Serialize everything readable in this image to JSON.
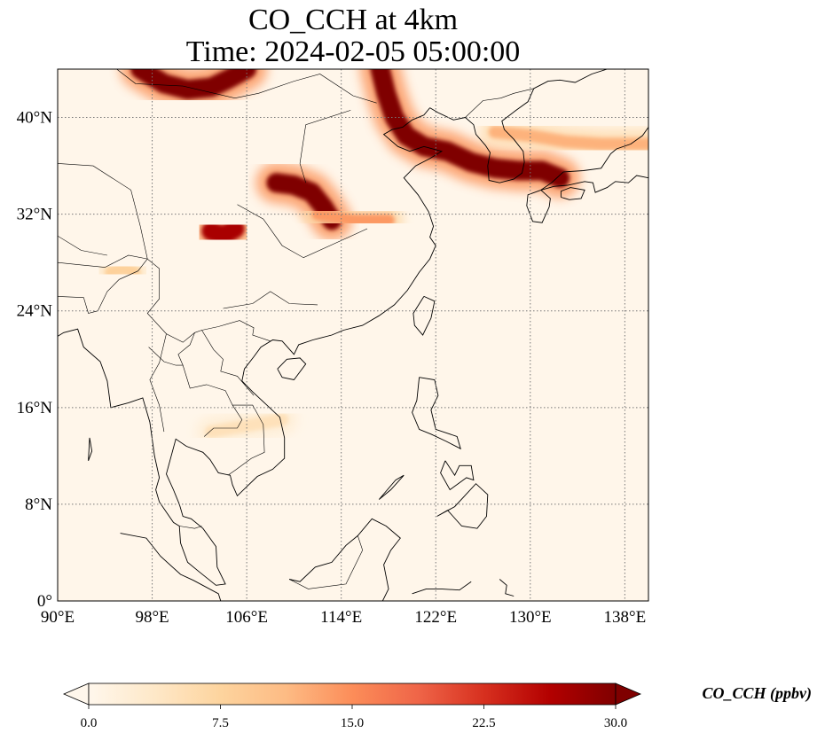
{
  "title_line1": "CO_CCH at 4km",
  "title_line2": "Time: 2024-02-05 05:00:00",
  "map": {
    "variable": "CO_CCH",
    "level": "4km",
    "projection": "PlateCarree",
    "lon_range": [
      90,
      140
    ],
    "lat_range": [
      0,
      44
    ],
    "lon_ticks": [
      90,
      98,
      106,
      114,
      122,
      130,
      138
    ],
    "lat_ticks": [
      0,
      8,
      16,
      24,
      32,
      40
    ],
    "lon_tick_labels": [
      "90°E",
      "98°E",
      "106°E",
      "114°E",
      "122°E",
      "130°E",
      "138°E"
    ],
    "lat_tick_labels": [
      "0°",
      "8°N",
      "16°N",
      "24°N",
      "32°N",
      "40°N"
    ],
    "gridlines": "dotted",
    "coastlines": true,
    "borders": true
  },
  "colorbar": {
    "label": "CO_CCH (ppbv)",
    "colormap": "OrRd",
    "vmin": 0.0,
    "vmax": 30.0,
    "extend": "both",
    "tick_values": [
      0.0,
      7.5,
      15.0,
      22.5,
      30.0
    ],
    "tick_labels": [
      "0.0",
      "7.5",
      "15.0",
      "22.5",
      "30.0"
    ],
    "colors": [
      "#fff7ec",
      "#fee8c8",
      "#fdd49e",
      "#fdbb84",
      "#fc8d59",
      "#ef6548",
      "#d7301f",
      "#b30000",
      "#7f0000"
    ]
  },
  "plumes": [
    {
      "name": "northern-plume",
      "points": [
        [
          97,
          44
        ],
        [
          99,
          42.8
        ],
        [
          101,
          42.3
        ],
        [
          103,
          42.5
        ],
        [
          104.5,
          43.2
        ],
        [
          106,
          44
        ]
      ],
      "value": 30
    },
    {
      "name": "manchuria-korea-plume",
      "points": [
        [
          117.3,
          44
        ],
        [
          117.8,
          42
        ],
        [
          118.5,
          40
        ],
        [
          119.5,
          38.5
        ],
        [
          121,
          37.6
        ],
        [
          123,
          37.2
        ],
        [
          125,
          36.3
        ],
        [
          127,
          35.8
        ],
        [
          129,
          35.6
        ],
        [
          131,
          35.6
        ],
        [
          132.5,
          35
        ]
      ],
      "value": 30
    },
    {
      "name": "central-china-plume",
      "points": [
        [
          108.5,
          34.6
        ],
        [
          110,
          34.4
        ],
        [
          111.5,
          33.8
        ],
        [
          112.5,
          32.6
        ],
        [
          113.2,
          31.5
        ]
      ],
      "value": 30
    },
    {
      "name": "sichuan-plume",
      "points": [
        [
          103,
          30.6
        ],
        [
          104,
          30.2
        ],
        [
          105,
          30.8
        ]
      ],
      "value": 27
    },
    {
      "name": "east-sea-plume",
      "points": [
        [
          127,
          38.8
        ],
        [
          130,
          38.5
        ],
        [
          133,
          38
        ],
        [
          136,
          37.8
        ],
        [
          140,
          37.8
        ]
      ],
      "value": 12
    },
    {
      "name": "yellow-sea-haze",
      "points": [
        [
          112,
          32
        ],
        [
          115,
          31.5
        ],
        [
          118,
          31.5
        ]
      ],
      "value": 14
    },
    {
      "name": "tibet-patch",
      "points": [
        [
          94.5,
          27.2
        ],
        [
          95.5,
          27.5
        ],
        [
          96.5,
          27.2
        ]
      ],
      "value": 8
    },
    {
      "name": "indochina-haze",
      "points": [
        [
          103,
          14
        ],
        [
          106,
          14.5
        ],
        [
          109,
          15
        ]
      ],
      "value": 5
    }
  ]
}
